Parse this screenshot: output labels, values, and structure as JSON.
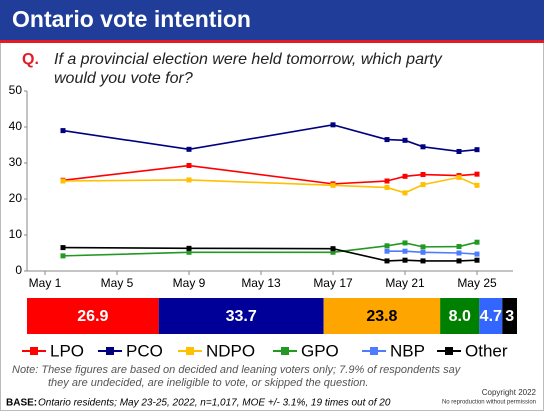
{
  "header": {
    "title": "Ontario vote intention"
  },
  "question": {
    "marker": "Q.",
    "lines": [
      "If a provincial election were held tomorrow, which party",
      "would you vote for?"
    ]
  },
  "chart_data": [
    {
      "type": "line",
      "xlim": [
        0,
        27
      ],
      "xticks": [
        {
          "value": 1,
          "label": "May 1"
        },
        {
          "value": 5,
          "label": "May 5"
        },
        {
          "value": 9,
          "label": "May 9"
        },
        {
          "value": 13,
          "label": "May 13"
        },
        {
          "value": 17,
          "label": "May 17"
        },
        {
          "value": 21,
          "label": "May 21"
        },
        {
          "value": 25,
          "label": "May 25"
        }
      ],
      "ylim": [
        0,
        50
      ],
      "yticks": [
        0,
        10,
        20,
        30,
        40,
        50
      ],
      "x": [
        2,
        9,
        17,
        20,
        21,
        22,
        24,
        25
      ],
      "series": [
        {
          "name": "LPO",
          "color": "#ff0000",
          "values": [
            25.2,
            29.3,
            24.2,
            25,
            26.3,
            26.8,
            26.5,
            26.9
          ]
        },
        {
          "name": "PCO",
          "color": "#000080",
          "values": [
            39,
            33.8,
            40.6,
            36.5,
            36.3,
            34.5,
            33.2,
            33.7
          ]
        },
        {
          "name": "NDPO",
          "color": "#ffc000",
          "values": [
            25,
            25.3,
            23.8,
            23.2,
            21.7,
            24,
            26,
            23.8
          ]
        },
        {
          "name": "GPO",
          "color": "#229922",
          "values": [
            4.2,
            5.2,
            5.2,
            7,
            7.8,
            6.7,
            6.8,
            8.0
          ]
        },
        {
          "name": "NBP",
          "color": "#4d7cff",
          "values": [
            null,
            null,
            null,
            5.5,
            5.5,
            5.2,
            5.0,
            4.7
          ]
        },
        {
          "name": "Other",
          "color": "#000000",
          "values": [
            6.5,
            6.3,
            6.2,
            2.8,
            3.0,
            2.8,
            2.8,
            3
          ]
        }
      ]
    },
    {
      "type": "strip",
      "values": [
        26.9,
        33.7,
        23.8,
        8.0,
        4.7,
        3
      ],
      "value_labels": [
        "26.9",
        "33.7",
        "23.8",
        "8.0",
        "4.7",
        "3"
      ],
      "colors": [
        "#ff0000",
        "#000099",
        "#ffa500",
        "#008000",
        "#3366ff",
        "#000000"
      ]
    }
  ],
  "note": {
    "lines": [
      "Note: These figures are based on decided and leaning voters only; 7.9% of respondents say",
      "they are undecided, are ineligible to vote, or skipped the question."
    ]
  },
  "copyright": {
    "lines": [
      "Copyright 2022",
      "No reproduction without permission"
    ]
  },
  "base": {
    "label": "BASE:",
    "text": "Ontario residents; May 23-25, 2022, n=1,017, MOE +/- 3.1%, 19 times out of 20"
  }
}
